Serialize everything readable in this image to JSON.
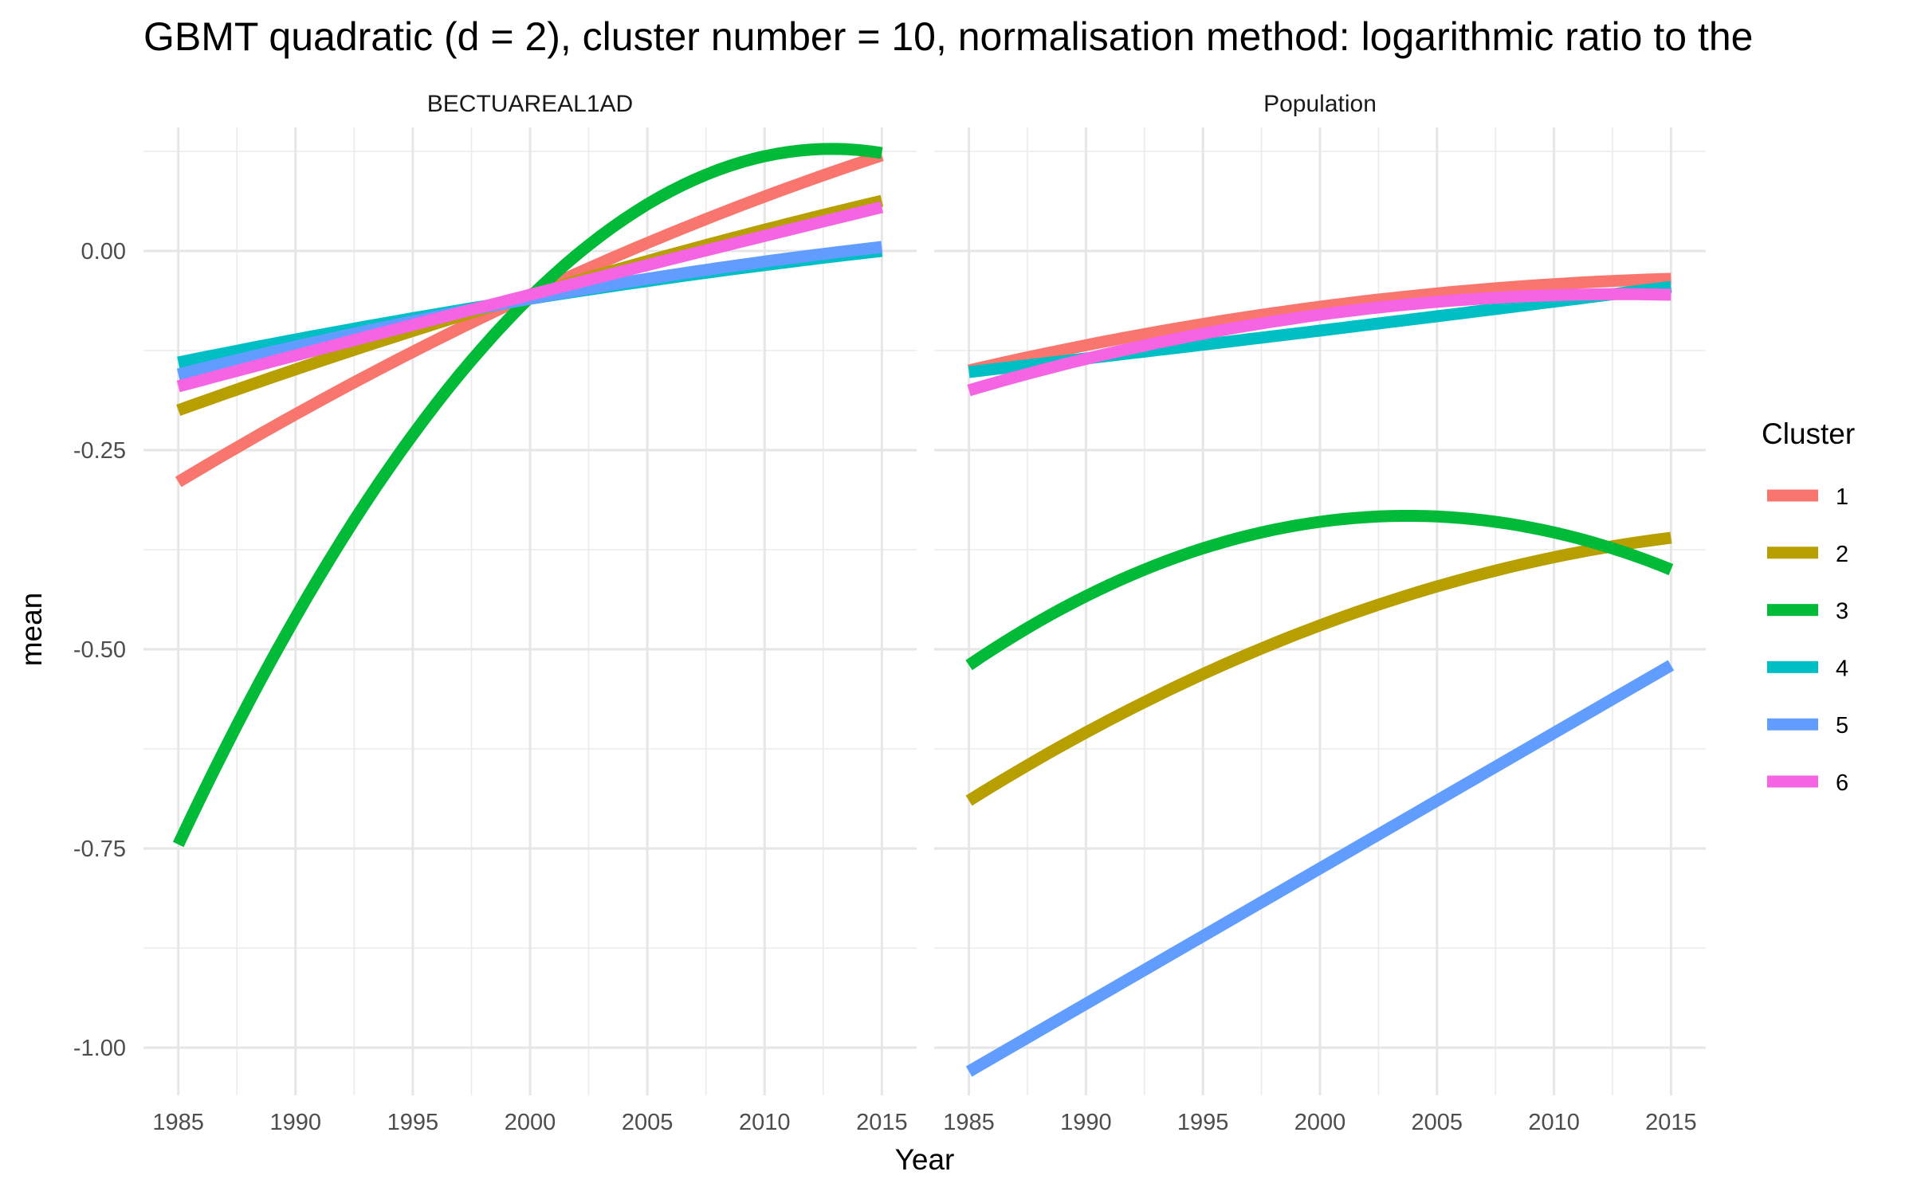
{
  "chart_data": {
    "type": "line",
    "title": "GBMT quadratic (d = 2), cluster number = 10, normalisation method: logarithmic ratio to the",
    "xlabel": "Year",
    "ylabel": "mean",
    "xlim": [
      1985,
      2015
    ],
    "ylim": [
      -1.06,
      0.155
    ],
    "x_ticks": [
      1985,
      1990,
      1995,
      2000,
      2005,
      2010,
      2015
    ],
    "y_ticks": [
      0.0,
      -0.25,
      -0.5,
      -0.75,
      -1.0
    ],
    "y_tick_labels": [
      "0.00",
      "-0.25",
      "-0.50",
      "-0.75",
      "-1.00"
    ],
    "grid": true,
    "legend": {
      "title": "Cluster",
      "position": "right",
      "entries": [
        {
          "label": "1",
          "color": "#F8766D"
        },
        {
          "label": "2",
          "color": "#B79F00"
        },
        {
          "label": "3",
          "color": "#00BA38"
        },
        {
          "label": "4",
          "color": "#00BFC4"
        },
        {
          "label": "5",
          "color": "#619CFF"
        },
        {
          "label": "6",
          "color": "#F564E3"
        }
      ]
    },
    "panels": [
      {
        "strip": "BECTUAREAL1AD",
        "series": [
          {
            "name": "1",
            "color": "#F8766D",
            "quadratic": [
              [
                1985,
                -0.29
              ],
              [
                2000,
                -0.055
              ],
              [
                2015,
                0.12
              ]
            ]
          },
          {
            "name": "2",
            "color": "#B79F00",
            "quadratic": [
              [
                1985,
                -0.2
              ],
              [
                2000,
                -0.055
              ],
              [
                2015,
                0.063
              ]
            ]
          },
          {
            "name": "3",
            "color": "#00BA38",
            "quadratic": [
              [
                1985,
                -0.745
              ],
              [
                2000,
                -0.058
              ],
              [
                2015,
                0.123
              ]
            ]
          },
          {
            "name": "4",
            "color": "#00BFC4",
            "quadratic": [
              [
                1985,
                -0.14
              ],
              [
                2000,
                -0.06
              ],
              [
                2015,
                0.0
              ]
            ]
          },
          {
            "name": "5",
            "color": "#619CFF",
            "quadratic": [
              [
                1985,
                -0.155
              ],
              [
                2000,
                -0.06
              ],
              [
                2015,
                0.005
              ]
            ]
          },
          {
            "name": "6",
            "color": "#F564E3",
            "quadratic": [
              [
                1985,
                -0.17
              ],
              [
                2000,
                -0.055
              ],
              [
                2015,
                0.055
              ]
            ]
          }
        ]
      },
      {
        "strip": "Population",
        "series": [
          {
            "name": "1",
            "color": "#F8766D",
            "quadratic": [
              [
                1985,
                -0.15
              ],
              [
                2000,
                -0.07
              ],
              [
                2015,
                -0.035
              ]
            ]
          },
          {
            "name": "2",
            "color": "#B79F00",
            "quadratic": [
              [
                1985,
                -0.69
              ],
              [
                2000,
                -0.47
              ],
              [
                2015,
                -0.36
              ]
            ]
          },
          {
            "name": "3",
            "color": "#00BA38",
            "quadratic": [
              [
                1985,
                -0.52
              ],
              [
                2000,
                -0.34
              ],
              [
                2015,
                -0.4
              ]
            ]
          },
          {
            "name": "4",
            "color": "#00BFC4",
            "quadratic": [
              [
                1985,
                -0.152
              ],
              [
                2000,
                -0.1
              ],
              [
                2015,
                -0.045
              ]
            ]
          },
          {
            "name": "5",
            "color": "#619CFF",
            "quadratic": [
              [
                1985,
                -1.03
              ],
              [
                2000,
                -0.775
              ],
              [
                2015,
                -0.52
              ]
            ]
          },
          {
            "name": "6",
            "color": "#F564E3",
            "quadratic": [
              [
                1985,
                -0.175
              ],
              [
                2000,
                -0.08
              ],
              [
                2015,
                -0.055
              ]
            ]
          }
        ]
      }
    ]
  }
}
